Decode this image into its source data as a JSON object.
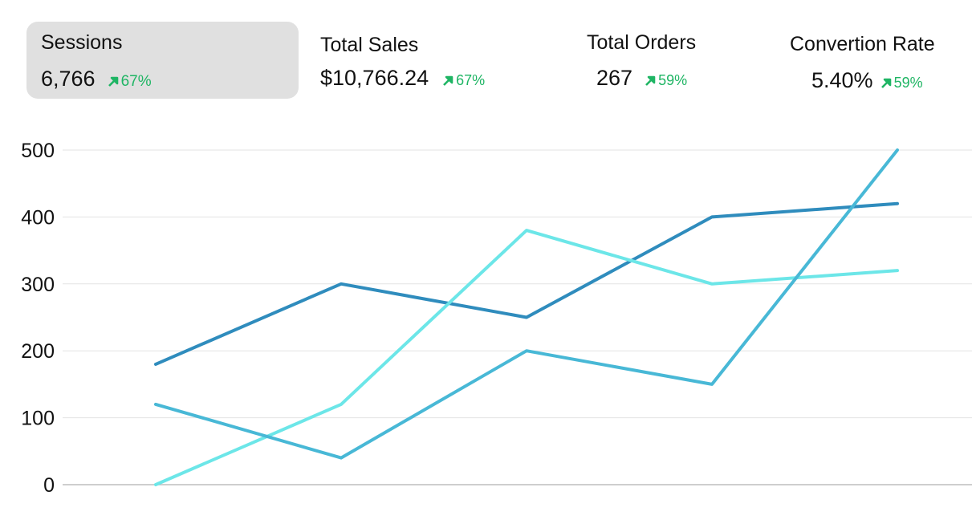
{
  "colors": {
    "trend_up": "#1fb564",
    "active_card_bg": "#e0e0e0",
    "gridline": "#e3e3e3",
    "axis_line": "#bdbdbd"
  },
  "kpis": [
    {
      "label": "Sessions",
      "value": "6,766",
      "change": "67%",
      "trend_icon": "arrow-up-right-icon",
      "selected": true
    },
    {
      "label": "Total Sales",
      "value": "$10,766.24",
      "change": "67%",
      "trend_icon": "arrow-up-right-icon",
      "selected": false
    },
    {
      "label": "Total Orders",
      "value": "267",
      "change": "59%",
      "trend_icon": "arrow-up-right-icon",
      "selected": false
    },
    {
      "label": "Convertion Rate",
      "value": "5.40%",
      "change": "59%",
      "trend_icon": "arrow-up-right-icon",
      "selected": false
    }
  ],
  "chart_data": {
    "type": "line",
    "title": "",
    "xlabel": "",
    "ylabel": "",
    "x": [
      1,
      2,
      3,
      4,
      5
    ],
    "x_tick_labels": [],
    "ylim": [
      0,
      500
    ],
    "y_ticks": [
      0,
      100,
      200,
      300,
      400,
      500
    ],
    "grid": true,
    "legend": "none",
    "series": [
      {
        "color": "#2f8cbd",
        "values": [
          180,
          300,
          250,
          400,
          420
        ]
      },
      {
        "color": "#6ce6e8",
        "values": [
          0,
          120,
          380,
          300,
          320
        ]
      },
      {
        "color": "#48b8d6",
        "values": [
          120,
          40,
          200,
          150,
          500
        ]
      }
    ]
  }
}
